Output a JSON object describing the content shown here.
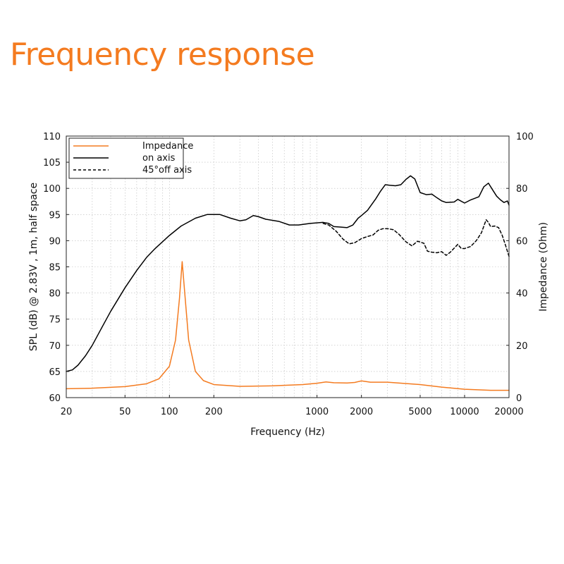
{
  "page": {
    "title": "Frequency response",
    "accent_color": "#f47b20"
  },
  "chart_data": {
    "type": "line",
    "xlabel": "Frequency (Hz)",
    "ylabel": "SPL (dB) @ 2.83V , 1m, half space",
    "y2label": "Impedance (Ohm)",
    "x_scale": "log",
    "xlim": [
      20,
      20000
    ],
    "ylim": [
      60,
      110
    ],
    "y2lim": [
      0,
      100
    ],
    "x_ticks": [
      20,
      50,
      100,
      200,
      1000,
      2000,
      5000,
      10000,
      20000
    ],
    "x_tick_labels": [
      "20",
      "50",
      "100",
      "200",
      "1000",
      "2000",
      "5000",
      "10000",
      "20000"
    ],
    "y_ticks": [
      60,
      65,
      70,
      75,
      80,
      85,
      90,
      95,
      100,
      105,
      110
    ],
    "y_tick_labels": [
      "60",
      "65",
      "70",
      "75",
      "80",
      "85",
      "90",
      "95",
      "100",
      "105",
      "110"
    ],
    "y2_ticks": [
      0,
      20,
      40,
      60,
      80,
      100
    ],
    "y2_tick_labels": [
      "0",
      "20",
      "40",
      "60",
      "80",
      "100"
    ],
    "grid": true,
    "legend_position": "top-left",
    "series": [
      {
        "name": "Impedance",
        "axis": "right",
        "color": "#f47b20",
        "style": "solid",
        "points": [
          [
            20,
            3.4
          ],
          [
            30,
            3.6
          ],
          [
            50,
            4.2
          ],
          [
            70,
            5.3
          ],
          [
            85,
            7.2
          ],
          [
            100,
            12
          ],
          [
            110,
            22
          ],
          [
            117,
            38
          ],
          [
            122,
            52
          ],
          [
            127,
            40
          ],
          [
            135,
            22
          ],
          [
            150,
            10
          ],
          [
            170,
            6.5
          ],
          [
            200,
            5
          ],
          [
            300,
            4.3
          ],
          [
            500,
            4.5
          ],
          [
            800,
            5
          ],
          [
            1000,
            5.5
          ],
          [
            1150,
            6
          ],
          [
            1300,
            5.7
          ],
          [
            1600,
            5.6
          ],
          [
            1800,
            5.8
          ],
          [
            2000,
            6.4
          ],
          [
            2300,
            5.9
          ],
          [
            3000,
            5.9
          ],
          [
            5000,
            5
          ],
          [
            7000,
            4
          ],
          [
            10000,
            3.2
          ],
          [
            15000,
            2.8
          ],
          [
            20000,
            2.8
          ]
        ]
      },
      {
        "name": "on axis",
        "axis": "left",
        "color": "#000000",
        "style": "solid",
        "points": [
          [
            20,
            65
          ],
          [
            22,
            65.3
          ],
          [
            24,
            66.2
          ],
          [
            27,
            68
          ],
          [
            30,
            70
          ],
          [
            35,
            73.5
          ],
          [
            40,
            76.5
          ],
          [
            50,
            81
          ],
          [
            60,
            84.3
          ],
          [
            70,
            86.8
          ],
          [
            80,
            88.5
          ],
          [
            100,
            91
          ],
          [
            120,
            92.8
          ],
          [
            150,
            94.3
          ],
          [
            180,
            95
          ],
          [
            220,
            95
          ],
          [
            260,
            94.3
          ],
          [
            300,
            93.8
          ],
          [
            330,
            94
          ],
          [
            370,
            94.8
          ],
          [
            400,
            94.6
          ],
          [
            450,
            94.1
          ],
          [
            550,
            93.7
          ],
          [
            650,
            93
          ],
          [
            750,
            93
          ],
          [
            900,
            93.3
          ],
          [
            1100,
            93.5
          ],
          [
            1200,
            93.3
          ],
          [
            1300,
            92.7
          ],
          [
            1450,
            92.6
          ],
          [
            1600,
            92.5
          ],
          [
            1750,
            93
          ],
          [
            1900,
            94.3
          ],
          [
            2000,
            94.8
          ],
          [
            2200,
            95.8
          ],
          [
            2500,
            98
          ],
          [
            2700,
            99.5
          ],
          [
            2900,
            100.7
          ],
          [
            3100,
            100.6
          ],
          [
            3400,
            100.5
          ],
          [
            3700,
            100.7
          ],
          [
            4000,
            101.7
          ],
          [
            4300,
            102.4
          ],
          [
            4600,
            101.8
          ],
          [
            5000,
            99.2
          ],
          [
            5500,
            98.8
          ],
          [
            6000,
            98.9
          ],
          [
            6500,
            98.2
          ],
          [
            7000,
            97.6
          ],
          [
            7500,
            97.3
          ],
          [
            8500,
            97.4
          ],
          [
            9000,
            97.9
          ],
          [
            10000,
            97.2
          ],
          [
            11000,
            97.8
          ],
          [
            12500,
            98.4
          ],
          [
            13500,
            100.3
          ],
          [
            14500,
            101
          ],
          [
            15500,
            99.7
          ],
          [
            16500,
            98.5
          ],
          [
            17500,
            97.8
          ],
          [
            18500,
            97.3
          ],
          [
            19500,
            97.6
          ],
          [
            20000,
            96.8
          ]
        ]
      },
      {
        "name": "45°off axis",
        "axis": "left",
        "color": "#000000",
        "style": "dashed",
        "points": [
          [
            1100,
            93.3
          ],
          [
            1200,
            93
          ],
          [
            1350,
            91.8
          ],
          [
            1500,
            90.3
          ],
          [
            1650,
            89.4
          ],
          [
            1800,
            89.6
          ],
          [
            2000,
            90.4
          ],
          [
            2200,
            90.8
          ],
          [
            2400,
            91.1
          ],
          [
            2600,
            92
          ],
          [
            2800,
            92.3
          ],
          [
            3000,
            92.3
          ],
          [
            3300,
            92.1
          ],
          [
            3600,
            91.2
          ],
          [
            4000,
            89.8
          ],
          [
            4400,
            89
          ],
          [
            4800,
            89.9
          ],
          [
            5300,
            89.5
          ],
          [
            5600,
            88
          ],
          [
            6000,
            87.8
          ],
          [
            6500,
            87.7
          ],
          [
            7000,
            87.9
          ],
          [
            7500,
            87.2
          ],
          [
            8000,
            87.8
          ],
          [
            9000,
            89.3
          ],
          [
            9500,
            88.5
          ],
          [
            10000,
            88.5
          ],
          [
            11000,
            88.9
          ],
          [
            12000,
            90
          ],
          [
            13000,
            91.5
          ],
          [
            14000,
            94
          ],
          [
            14500,
            93.5
          ],
          [
            15000,
            92.7
          ],
          [
            16000,
            92.8
          ],
          [
            17000,
            92.5
          ],
          [
            18000,
            91
          ],
          [
            19000,
            89
          ],
          [
            20000,
            87
          ]
        ]
      }
    ]
  }
}
